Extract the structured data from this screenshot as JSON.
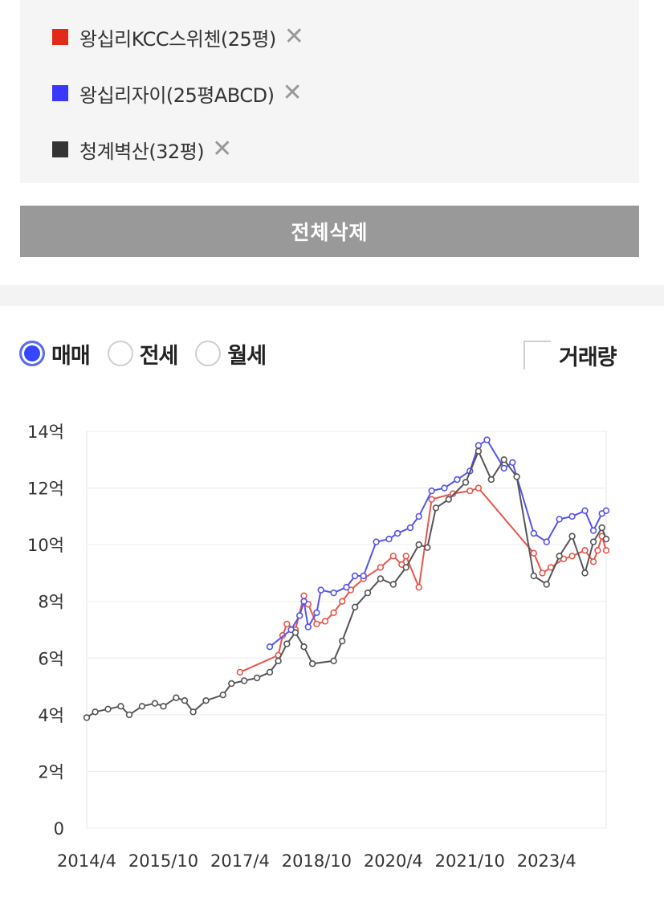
{
  "compare": {
    "items": [
      {
        "label": "왕십리KCC스위첸(25평)",
        "color": "#e02a1a",
        "remove": "✕"
      },
      {
        "label": "왕십리자이(25평ABCD)",
        "color": "#3838ff",
        "remove": "✕"
      },
      {
        "label": "청계벽산(32평)",
        "color": "#333333",
        "remove": "✕"
      }
    ],
    "delete_all": "전체삭제"
  },
  "controls": {
    "options": [
      {
        "label": "매매",
        "checked": true
      },
      {
        "label": "전세",
        "checked": false
      },
      {
        "label": "월세",
        "checked": false
      }
    ],
    "volume_label": "거래량"
  },
  "chart_data": {
    "type": "line",
    "x_range": [
      "2014-04",
      "2024-06"
    ],
    "ylim": [
      0,
      14
    ],
    "y_ticks": [
      {
        "value": 0,
        "label": "0"
      },
      {
        "value": 2,
        "label": "2억"
      },
      {
        "value": 4,
        "label": "4억"
      },
      {
        "value": 6,
        "label": "6억"
      },
      {
        "value": 8,
        "label": "8억"
      },
      {
        "value": 10,
        "label": "10억"
      },
      {
        "value": 12,
        "label": "12억"
      },
      {
        "value": 14,
        "label": "14억"
      }
    ],
    "x_ticks": [
      {
        "value": "2014-04",
        "label": "2014/4"
      },
      {
        "value": "2015-10",
        "label": "2015/10"
      },
      {
        "value": "2017-04",
        "label": "2017/4"
      },
      {
        "value": "2018-10",
        "label": "2018/10"
      },
      {
        "value": "2020-04",
        "label": "2020/4"
      },
      {
        "value": "2021-10",
        "label": "2021/10"
      },
      {
        "value": "2023-04",
        "label": "2023/4"
      }
    ],
    "grid": true,
    "series": [
      {
        "name": "왕십리KCC스위첸(25평)",
        "color": "#e8554a",
        "points": [
          [
            "2017-04",
            5.5
          ],
          [
            "2018-01",
            6.1
          ],
          [
            "2018-02",
            6.8
          ],
          [
            "2018-03",
            7.2
          ],
          [
            "2018-05",
            7.0
          ],
          [
            "2018-07",
            8.2
          ],
          [
            "2018-08",
            7.9
          ],
          [
            "2018-10",
            7.2
          ],
          [
            "2018-12",
            7.3
          ],
          [
            "2019-02",
            7.6
          ],
          [
            "2019-04",
            8.0
          ],
          [
            "2019-06",
            8.4
          ],
          [
            "2019-09",
            8.8
          ],
          [
            "2020-01",
            9.2
          ],
          [
            "2020-04",
            9.6
          ],
          [
            "2020-06",
            9.3
          ],
          [
            "2020-07",
            9.6
          ],
          [
            "2020-10",
            8.5
          ],
          [
            "2021-01",
            11.6
          ],
          [
            "2021-06",
            11.8
          ],
          [
            "2021-10",
            11.9
          ],
          [
            "2021-12",
            12.0
          ],
          [
            "2023-01",
            9.7
          ],
          [
            "2023-03",
            9.0
          ],
          [
            "2023-05",
            9.2
          ],
          [
            "2023-08",
            9.5
          ],
          [
            "2023-10",
            9.6
          ],
          [
            "2024-01",
            9.8
          ],
          [
            "2024-03",
            9.4
          ],
          [
            "2024-04",
            9.8
          ],
          [
            "2024-05",
            10.3
          ],
          [
            "2024-06",
            9.8
          ]
        ]
      },
      {
        "name": "왕십리자이(25평ABCD)",
        "color": "#5454ef",
        "points": [
          [
            "2017-11",
            6.4
          ],
          [
            "2018-04",
            7.0
          ],
          [
            "2018-06",
            7.5
          ],
          [
            "2018-07",
            8.0
          ],
          [
            "2018-08",
            7.1
          ],
          [
            "2018-10",
            7.6
          ],
          [
            "2018-11",
            8.4
          ],
          [
            "2019-02",
            8.3
          ],
          [
            "2019-05",
            8.5
          ],
          [
            "2019-07",
            8.9
          ],
          [
            "2019-09",
            8.9
          ],
          [
            "2019-12",
            10.1
          ],
          [
            "2020-03",
            10.2
          ],
          [
            "2020-05",
            10.4
          ],
          [
            "2020-08",
            10.6
          ],
          [
            "2020-10",
            11.0
          ],
          [
            "2021-01",
            11.9
          ],
          [
            "2021-04",
            12.0
          ],
          [
            "2021-07",
            12.3
          ],
          [
            "2021-10",
            12.6
          ],
          [
            "2021-12",
            13.5
          ],
          [
            "2022-02",
            13.7
          ],
          [
            "2022-06",
            12.7
          ],
          [
            "2022-08",
            12.9
          ],
          [
            "2023-01",
            10.4
          ],
          [
            "2023-04",
            10.1
          ],
          [
            "2023-07",
            10.9
          ],
          [
            "2023-10",
            11.0
          ],
          [
            "2024-01",
            11.2
          ],
          [
            "2024-03",
            10.5
          ],
          [
            "2024-05",
            11.1
          ],
          [
            "2024-06",
            11.2
          ]
        ]
      },
      {
        "name": "청계벽산(32평)",
        "color": "#555555",
        "points": [
          [
            "2014-04",
            3.9
          ],
          [
            "2014-06",
            4.1
          ],
          [
            "2014-09",
            4.2
          ],
          [
            "2014-12",
            4.3
          ],
          [
            "2015-02",
            4.0
          ],
          [
            "2015-05",
            4.3
          ],
          [
            "2015-08",
            4.4
          ],
          [
            "2015-10",
            4.3
          ],
          [
            "2016-01",
            4.6
          ],
          [
            "2016-03",
            4.5
          ],
          [
            "2016-05",
            4.1
          ],
          [
            "2016-08",
            4.5
          ],
          [
            "2016-12",
            4.7
          ],
          [
            "2017-02",
            5.1
          ],
          [
            "2017-05",
            5.2
          ],
          [
            "2017-08",
            5.3
          ],
          [
            "2017-11",
            5.5
          ],
          [
            "2018-01",
            5.9
          ],
          [
            "2018-03",
            6.5
          ],
          [
            "2018-05",
            6.9
          ],
          [
            "2018-07",
            6.4
          ],
          [
            "2018-09",
            5.8
          ],
          [
            "2019-02",
            5.9
          ],
          [
            "2019-04",
            6.6
          ],
          [
            "2019-07",
            7.8
          ],
          [
            "2019-10",
            8.3
          ],
          [
            "2020-01",
            8.8
          ],
          [
            "2020-04",
            8.6
          ],
          [
            "2020-07",
            9.2
          ],
          [
            "2020-10",
            10.0
          ],
          [
            "2020-12",
            9.9
          ],
          [
            "2021-02",
            11.3
          ],
          [
            "2021-05",
            11.6
          ],
          [
            "2021-09",
            12.2
          ],
          [
            "2021-12",
            13.3
          ],
          [
            "2022-03",
            12.3
          ],
          [
            "2022-06",
            13.0
          ],
          [
            "2022-09",
            12.4
          ],
          [
            "2023-01",
            8.9
          ],
          [
            "2023-04",
            8.6
          ],
          [
            "2023-07",
            9.6
          ],
          [
            "2023-10",
            10.3
          ],
          [
            "2024-01",
            9.0
          ],
          [
            "2024-03",
            10.1
          ],
          [
            "2024-05",
            10.6
          ],
          [
            "2024-06",
            10.2
          ]
        ]
      }
    ]
  }
}
